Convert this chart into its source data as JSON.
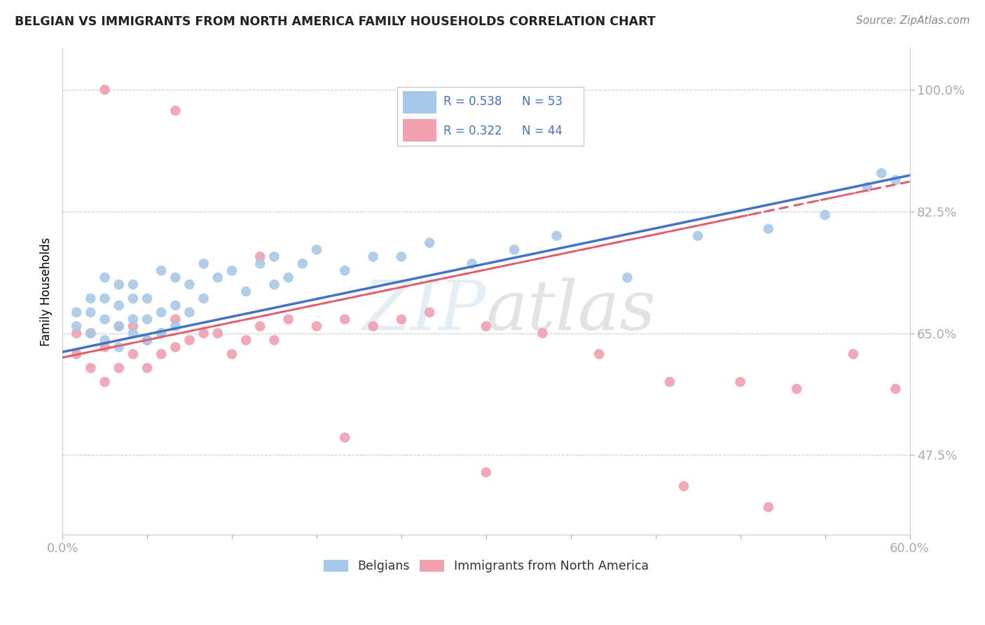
{
  "title": "BELGIAN VS IMMIGRANTS FROM NORTH AMERICA FAMILY HOUSEHOLDS CORRELATION CHART",
  "source": "Source: ZipAtlas.com",
  "ylabel": "Family Households",
  "ytick_labels": [
    "47.5%",
    "65.0%",
    "82.5%",
    "100.0%"
  ],
  "ytick_values": [
    0.475,
    0.65,
    0.825,
    1.0
  ],
  "legend_r1": "R = 0.538",
  "legend_n1": "N = 53",
  "legend_r2": "R = 0.322",
  "legend_n2": "N = 44",
  "color_belgian": "#a8c8e8",
  "color_immigrant": "#f0a0b0",
  "color_line_belgian": "#4472c4",
  "color_line_immigrant": "#e06070",
  "color_text_blue": "#4472c4",
  "xmin": 0.0,
  "xmax": 0.6,
  "ymin": 0.36,
  "ymax": 1.06,
  "belgian_x": [
    0.01,
    0.01,
    0.02,
    0.02,
    0.02,
    0.03,
    0.03,
    0.03,
    0.03,
    0.04,
    0.04,
    0.04,
    0.04,
    0.05,
    0.05,
    0.05,
    0.05,
    0.06,
    0.06,
    0.06,
    0.07,
    0.07,
    0.07,
    0.08,
    0.08,
    0.08,
    0.09,
    0.09,
    0.1,
    0.1,
    0.11,
    0.12,
    0.13,
    0.14,
    0.15,
    0.15,
    0.16,
    0.17,
    0.18,
    0.2,
    0.22,
    0.24,
    0.26,
    0.29,
    0.32,
    0.35,
    0.4,
    0.45,
    0.5,
    0.54,
    0.57,
    0.58,
    0.59
  ],
  "belgian_y": [
    0.66,
    0.68,
    0.65,
    0.68,
    0.7,
    0.64,
    0.67,
    0.7,
    0.73,
    0.63,
    0.66,
    0.69,
    0.72,
    0.65,
    0.67,
    0.7,
    0.72,
    0.64,
    0.67,
    0.7,
    0.65,
    0.68,
    0.74,
    0.66,
    0.69,
    0.73,
    0.68,
    0.72,
    0.7,
    0.75,
    0.73,
    0.74,
    0.71,
    0.75,
    0.72,
    0.76,
    0.73,
    0.75,
    0.77,
    0.74,
    0.76,
    0.76,
    0.78,
    0.75,
    0.77,
    0.79,
    0.73,
    0.79,
    0.8,
    0.82,
    0.86,
    0.88,
    0.87
  ],
  "immigrant_x": [
    0.01,
    0.01,
    0.02,
    0.02,
    0.03,
    0.03,
    0.04,
    0.04,
    0.05,
    0.05,
    0.06,
    0.06,
    0.07,
    0.07,
    0.08,
    0.08,
    0.09,
    0.1,
    0.11,
    0.12,
    0.13,
    0.14,
    0.15,
    0.16,
    0.18,
    0.2,
    0.22,
    0.24,
    0.26,
    0.3,
    0.34,
    0.38,
    0.43,
    0.48,
    0.52,
    0.56,
    0.59,
    0.03,
    0.08,
    0.14,
    0.2,
    0.3,
    0.44,
    0.5
  ],
  "immigrant_y": [
    0.62,
    0.65,
    0.6,
    0.65,
    0.58,
    0.63,
    0.6,
    0.66,
    0.62,
    0.66,
    0.6,
    0.64,
    0.62,
    0.65,
    0.63,
    0.67,
    0.64,
    0.65,
    0.65,
    0.62,
    0.64,
    0.66,
    0.64,
    0.67,
    0.66,
    0.67,
    0.66,
    0.67,
    0.68,
    0.66,
    0.65,
    0.62,
    0.58,
    0.58,
    0.57,
    0.62,
    0.57,
    1.0,
    0.97,
    0.76,
    0.5,
    0.45,
    0.43,
    0.4
  ],
  "line_b_x0": 0.0,
  "line_b_y0": 0.623,
  "line_b_x1": 0.6,
  "line_b_y1": 0.877,
  "line_i_x0": 0.0,
  "line_i_y0": 0.615,
  "line_i_x1": 0.6,
  "line_i_y1": 0.868
}
